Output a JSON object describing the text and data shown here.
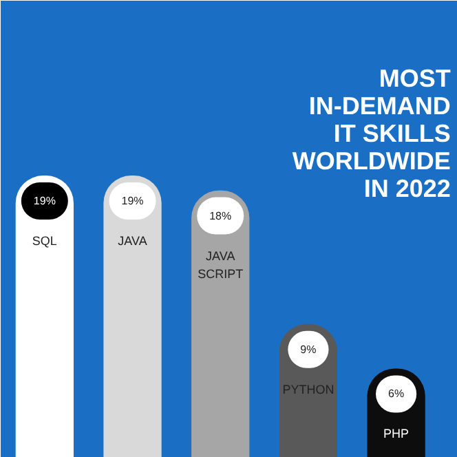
{
  "chart_data": {
    "type": "bar",
    "title": "MOST IN-DEMAND IT SKILLS WORLDWIDE IN 2022",
    "categories": [
      "SQL",
      "JAVA",
      "JAVA SCRIPT",
      "PYTHON",
      "PHP"
    ],
    "values": [
      19,
      19,
      18,
      9,
      6
    ],
    "value_labels": [
      "19%",
      "19%",
      "18%",
      "9%",
      "6%"
    ],
    "colors": [
      "#ffffff",
      "#d9d9d9",
      "#a6a6a6",
      "#595959",
      "#0d0d0d"
    ],
    "grid": false
  }
}
